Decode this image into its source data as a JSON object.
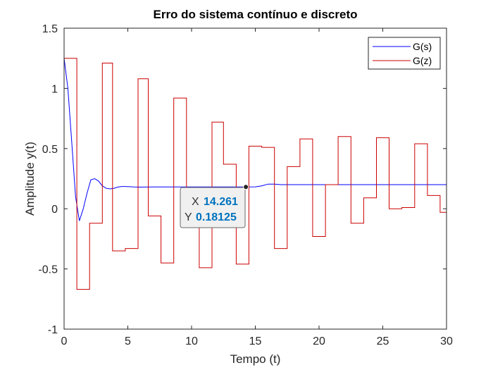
{
  "chart_data": {
    "type": "line",
    "title": "Erro do sistema contínuo e discreto",
    "xlabel": "Tempo (t)",
    "ylabel": "Amplitude y(t)",
    "xlim": [
      0,
      30
    ],
    "ylim": [
      -1,
      1.5
    ],
    "xticks": [
      0,
      5,
      10,
      15,
      20,
      25,
      30
    ],
    "xtick_labels": [
      "0",
      "5",
      "10",
      "15",
      "20",
      "25",
      "30"
    ],
    "yticks": [
      -1,
      -0.5,
      0,
      0.5,
      1,
      1.5
    ],
    "ytick_labels": [
      "-1",
      "-0.5",
      "0",
      "0.5",
      "1",
      "1.5"
    ],
    "grid": false,
    "legend_position": "top-right",
    "series": [
      {
        "name": "G(s)",
        "style": "line",
        "color": "#0000ff",
        "x": [
          0,
          0.3,
          0.6,
          0.9,
          1.2,
          1.5,
          1.8,
          2.1,
          2.4,
          2.7,
          3.0,
          3.3,
          3.6,
          3.9,
          4.2,
          4.5,
          4.8,
          5.1,
          5.5,
          6,
          7,
          8,
          9,
          10,
          11,
          12,
          13,
          14,
          14.261,
          15,
          15.5,
          16,
          16.5,
          17,
          18,
          19,
          20,
          22,
          24,
          26,
          28,
          30
        ],
        "y": [
          1.25,
          1.0,
          0.55,
          0.1,
          -0.1,
          0.0,
          0.13,
          0.24,
          0.25,
          0.23,
          0.19,
          0.17,
          0.165,
          0.17,
          0.18,
          0.185,
          0.185,
          0.183,
          0.181,
          0.18,
          0.181,
          0.181,
          0.181,
          0.181,
          0.181,
          0.181,
          0.181,
          0.181,
          0.18125,
          0.182,
          0.19,
          0.205,
          0.205,
          0.2,
          0.2,
          0.2,
          0.2,
          0.2,
          0.2,
          0.2,
          0.2,
          0.2
        ]
      },
      {
        "name": "G(z)",
        "style": "stairs",
        "color": "#cc0000",
        "x": [
          0,
          1.0,
          2.0,
          3.0,
          3.8,
          4.8,
          5.8,
          6.6,
          7.6,
          8.6,
          9.6,
          10.6,
          11.6,
          12.5,
          13.5,
          14.5,
          15.5,
          16.5,
          17.5,
          18.5,
          19.5,
          20.5,
          21.5,
          22.5,
          23.5,
          24.5,
          25.5,
          26.5,
          27.5,
          28.5,
          29.5,
          30.0
        ],
        "y": [
          1.25,
          -0.67,
          -0.12,
          1.21,
          -0.35,
          -0.33,
          1.08,
          -0.06,
          -0.45,
          0.92,
          -0.11,
          -0.49,
          0.72,
          0.37,
          -0.46,
          0.52,
          0.51,
          -0.33,
          0.35,
          0.58,
          -0.23,
          0.2,
          0.6,
          -0.12,
          0.09,
          0.59,
          0.0,
          0.01,
          0.54,
          0.11,
          -0.03,
          0.47
        ]
      }
    ],
    "datatip": {
      "x_label": "X",
      "x_value": "14.261",
      "y_label": "Y",
      "y_value": "0.18125",
      "x": 14.261,
      "y": 0.18125
    }
  }
}
